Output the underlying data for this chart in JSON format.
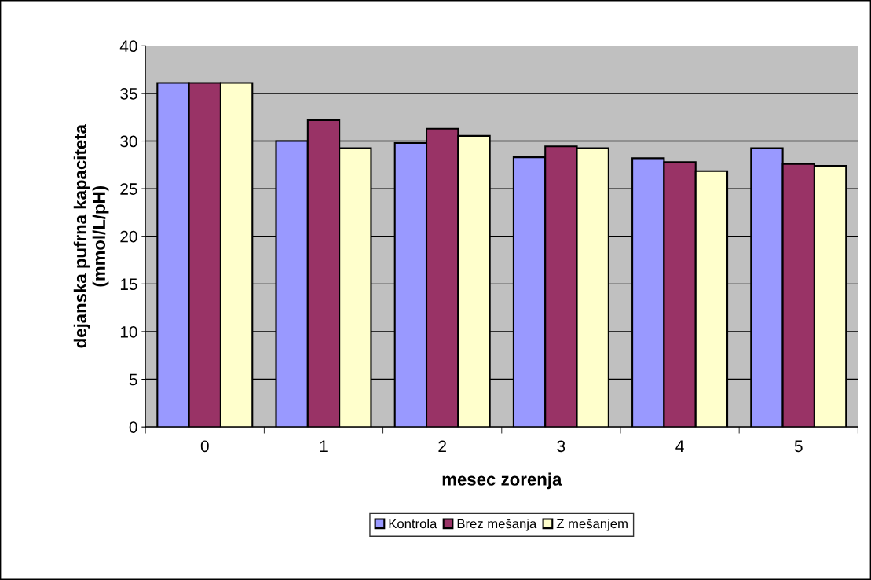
{
  "chart_data": {
    "type": "bar",
    "xlabel": "mesec zorenja",
    "ylabel": "dejanska pufrna kapaciteta\n(mmol/L/pH)",
    "categories": [
      "0",
      "1",
      "2",
      "3",
      "4",
      "5"
    ],
    "series": [
      {
        "name": "Kontrola",
        "color": "#9999ff",
        "values": [
          36.1,
          30.0,
          29.8,
          28.3,
          28.2,
          29.25
        ]
      },
      {
        "name": "Brez mešanja",
        "color": "#993366",
        "values": [
          36.1,
          32.2,
          31.3,
          29.45,
          27.8,
          27.6
        ]
      },
      {
        "name": "Z mešanjem",
        "color": "#ffffcc",
        "values": [
          36.1,
          29.25,
          30.55,
          29.25,
          26.85,
          27.4
        ]
      }
    ],
    "ylim": [
      0,
      40
    ],
    "yticks": [
      0,
      5,
      10,
      15,
      20,
      25,
      30,
      35,
      40
    ],
    "grid": "y",
    "legend": "bottom"
  }
}
